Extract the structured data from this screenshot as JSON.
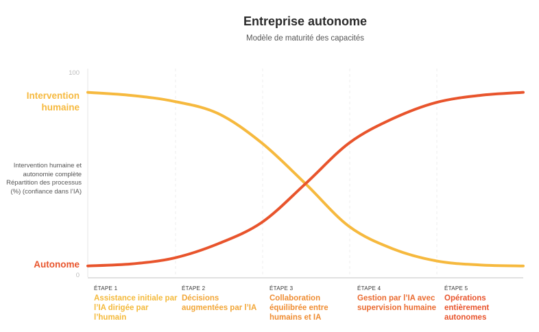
{
  "chart_data": {
    "type": "line",
    "title": "Entreprise autonome",
    "subtitle": "Modèle de maturité des capacités",
    "ylabel": "Intervention humaine et autonomie complète Répartition des processus (%) (confiance dans l’IA)",
    "ylim": [
      0,
      100
    ],
    "yticks": [
      "100",
      "0"
    ],
    "grid": "vertical-dashed",
    "stages": [
      {
        "num": "ÉTAPE 1",
        "desc": "Assistance initiale par l’IA dirigée par l’humain",
        "color": "#f4b93a"
      },
      {
        "num": "ÉTAPE 2",
        "desc": "Décisions augmentées par l’IA",
        "color": "#f2a637"
      },
      {
        "num": "ÉTAPE 3",
        "desc": "Collaboration équilibrée entre humains et IA",
        "color": "#ef8d33"
      },
      {
        "num": "ÉTAPE 4",
        "desc": "Gestion par l’IA avec supervision humaine",
        "color": "#ea6a2f"
      },
      {
        "num": "ÉTAPE 5",
        "desc": "Opérations entièrement autonomes",
        "color": "#e8542c"
      }
    ],
    "x": [
      1,
      1.5,
      2,
      2.5,
      3,
      3.5,
      4,
      4.5,
      5,
      5.5,
      6
    ],
    "series": [
      {
        "name": "Intervention humaine",
        "color": "#f6b93e",
        "values": [
          91,
          89.5,
          86.5,
          80.5,
          66,
          46,
          25,
          14,
          8,
          6,
          5.5
        ]
      },
      {
        "name": "Autonome",
        "color": "#e8542c",
        "values": [
          5.5,
          6.5,
          9.5,
          16.5,
          27,
          46,
          66,
          78,
          86,
          89.5,
          91
        ]
      }
    ]
  }
}
